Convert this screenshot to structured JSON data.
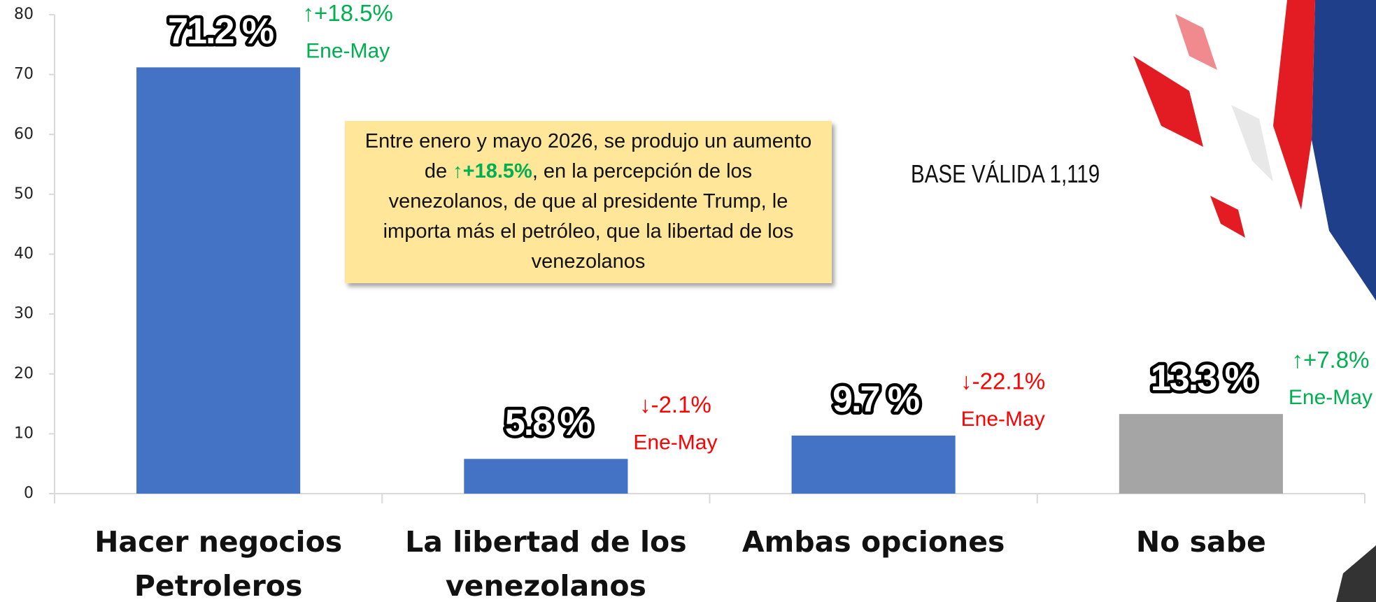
{
  "chart_data": {
    "type": "bar",
    "categories": [
      "Hacer negocios Petroleros",
      "La libertad de los venezolanos",
      "Ambas opciones",
      "No sabe"
    ],
    "values": [
      71.2,
      5.8,
      9.7,
      13.3
    ],
    "value_labels": [
      "71.2 %",
      "5.8 %",
      "9.7 %",
      "13.3 %"
    ],
    "colors": [
      "#4472c4",
      "#4472c4",
      "#4472c4",
      "#a5a5a5"
    ],
    "ylim": [
      0,
      80
    ],
    "yticks": [
      0,
      10,
      20,
      30,
      40,
      50,
      60,
      70,
      80
    ],
    "changes": [
      {
        "label": "↑+18.5%",
        "period": "Ene-May",
        "color": "#00b050"
      },
      {
        "label": "↓-2.1%",
        "period": "Ene-May",
        "color": "#ff0000"
      },
      {
        "label": "↓-22.1%",
        "period": "Ene-May",
        "color": "#ff0000"
      },
      {
        "label": "↑+7.8%",
        "period": "Ene-May",
        "color": "#00b050"
      }
    ],
    "note": {
      "before": "Entre enero y mayo 2026, se produjo un aumento de ",
      "highlight": "↑+18.5%",
      "after": ", en la percepción de los venezolanos, de que al presidente Trump, le importa más el petróleo, que la libertad de los venezolanos"
    },
    "base_label": "BASE VÁLIDA 1,119"
  }
}
